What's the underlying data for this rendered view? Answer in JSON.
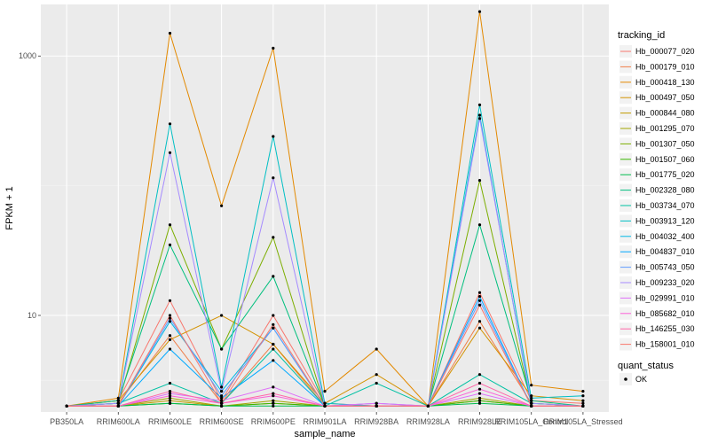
{
  "chart_data": {
    "type": "line",
    "xlabel": "sample_name",
    "ylabel": "FPKM + 1",
    "y_scale": "log10",
    "ylim": [
      1.8,
      2500
    ],
    "y_ticks": [
      10,
      1000
    ],
    "y_tick_labels": [
      "10",
      "1000"
    ],
    "grid": true,
    "legend_position": "right",
    "categories": [
      "PB350LA",
      "RRIM600LA",
      "RRIM600LE",
      "RRIM600SE",
      "RRIM600PE",
      "RRIM901LA",
      "RRIM928BA",
      "RRIM928LA",
      "RRIM928LE",
      "RRIM105LA_Control",
      "RRIM105LA_Stressed"
    ],
    "legend_title": "tracking_id",
    "series": [
      {
        "name": "Hb_000077_020",
        "color": "#F8766D",
        "values": [
          2,
          2.2,
          13,
          2.2,
          10,
          2.1,
          2.0,
          2.0,
          15,
          2.2,
          2.1
        ]
      },
      {
        "name": "Hb_000179_010",
        "color": "#EF7F49",
        "values": [
          2,
          2.1,
          7,
          2.1,
          6,
          2.0,
          2.0,
          2.0,
          9,
          2.1,
          2.0
        ]
      },
      {
        "name": "Hb_000418_130",
        "color": "#E38900",
        "values": [
          2,
          2.3,
          1500,
          70,
          1150,
          2.6,
          5.5,
          2.0,
          2200,
          2.9,
          2.6
        ]
      },
      {
        "name": "Hb_000497_050",
        "color": "#D39200",
        "values": [
          2,
          2.2,
          6.5,
          10,
          6,
          2.1,
          3.5,
          2.0,
          8,
          2.4,
          2.2
        ]
      },
      {
        "name": "Hb_000844_080",
        "color": "#C09B00",
        "values": [
          2,
          2.0,
          2.2,
          2.0,
          2.1,
          2.0,
          2.0,
          2.0,
          2.2,
          2.0,
          2.0
        ]
      },
      {
        "name": "Hb_001295_070",
        "color": "#A3A500",
        "values": [
          2,
          2.0,
          2.3,
          2.0,
          2.2,
          2.0,
          2.0,
          2.0,
          2.3,
          2.0,
          2.0
        ]
      },
      {
        "name": "Hb_001307_050",
        "color": "#7CAE00",
        "values": [
          2,
          2.1,
          50,
          5.5,
          40,
          2.0,
          2.0,
          2.0,
          110,
          2.1,
          2.0
        ]
      },
      {
        "name": "Hb_001507_060",
        "color": "#39B600",
        "values": [
          2,
          2.0,
          2.1,
          2.0,
          2.1,
          2.0,
          2.0,
          2.0,
          2.2,
          2.0,
          2.0
        ]
      },
      {
        "name": "Hb_001775_020",
        "color": "#00BB4E",
        "values": [
          2,
          2.0,
          2.1,
          2.0,
          2.0,
          2.0,
          2.0,
          2.0,
          2.1,
          2.0,
          2.0
        ]
      },
      {
        "name": "Hb_002328_080",
        "color": "#00BF7D",
        "values": [
          2,
          2.2,
          35,
          5.5,
          20,
          2.0,
          2.0,
          2.0,
          50,
          2.2,
          2.0
        ]
      },
      {
        "name": "Hb_003734_070",
        "color": "#00C1A3",
        "values": [
          2,
          2.1,
          3.0,
          2.1,
          5.5,
          2.0,
          3.0,
          2.0,
          3.5,
          2.1,
          2.0
        ]
      },
      {
        "name": "Hb_003913_120",
        "color": "#00BFC4",
        "values": [
          2,
          2.1,
          300,
          2.8,
          240,
          2.1,
          2.0,
          2.0,
          420,
          2.3,
          2.4
        ]
      },
      {
        "name": "Hb_004032_400",
        "color": "#00B8E5",
        "values": [
          2,
          2.0,
          9,
          2.6,
          8,
          2.0,
          2.0,
          2.0,
          350,
          2.0,
          2.0
        ]
      },
      {
        "name": "Hb_004837_010",
        "color": "#00A9FF",
        "values": [
          2,
          2.0,
          5.5,
          2.3,
          4.5,
          2.0,
          2.0,
          2.0,
          14,
          2.0,
          2.0
        ]
      },
      {
        "name": "Hb_005743_050",
        "color": "#619CFF",
        "values": [
          2,
          2.0,
          9.5,
          2.4,
          8,
          2.0,
          2.1,
          2.0,
          13,
          2.0,
          2.0
        ]
      },
      {
        "name": "Hb_009233_020",
        "color": "#A58AFF",
        "values": [
          2,
          2.1,
          180,
          2.6,
          115,
          2.0,
          2.0,
          2.0,
          330,
          2.1,
          2.0
        ]
      },
      {
        "name": "Hb_029991_010",
        "color": "#DF70F8",
        "values": [
          2,
          2.0,
          2.5,
          2.2,
          2.8,
          2.0,
          2.1,
          2.0,
          2.5,
          2.0,
          2.0
        ]
      },
      {
        "name": "Hb_085682_010",
        "color": "#FB61D7",
        "values": [
          2,
          2.0,
          2.4,
          2.1,
          2.4,
          2.0,
          2.0,
          2.0,
          2.7,
          2.0,
          2.0
        ]
      },
      {
        "name": "Hb_146255_030",
        "color": "#FF66A8",
        "values": [
          2,
          2.0,
          2.6,
          2.1,
          2.5,
          2.0,
          2.0,
          2.0,
          3.0,
          2.0,
          2.0
        ]
      },
      {
        "name": "Hb_158001_010",
        "color": "#F8766D",
        "values": [
          2,
          2.0,
          10,
          2.1,
          8.5,
          2.0,
          2.0,
          2.0,
          12,
          2.0,
          2.0
        ]
      }
    ],
    "point_legend": {
      "title": "quant_status",
      "label": "OK"
    }
  }
}
